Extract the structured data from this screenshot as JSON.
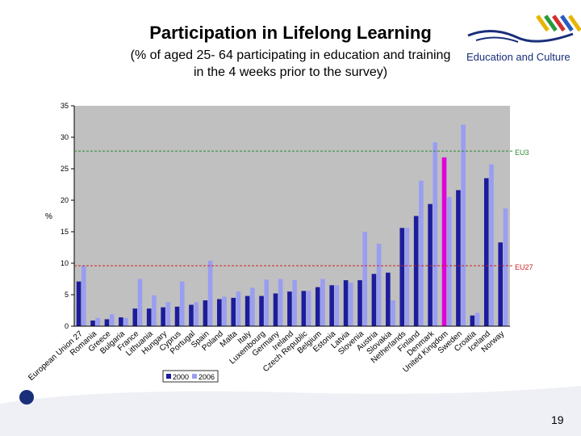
{
  "slide": {
    "title": "Participation in Lifelong Learning",
    "subtitle_line1": "(% of aged 25- 64 participating in education and training",
    "subtitle_line2": "in the 4 weeks prior to the survey)",
    "logo_text": "Education and Culture",
    "page_number": "19"
  },
  "colors": {
    "series_2000": "#1c1c9c",
    "series_2006": "#9a9ef0",
    "highlight_2000": "#e000d8",
    "plot_bg": "#c0c0c0",
    "eu3_line": "#2e8b2e",
    "eu27_line": "#cc2222",
    "logo_blue": "#1a2f7a"
  },
  "chart_data": {
    "type": "bar",
    "ylabel": "%",
    "ylim": [
      0,
      35
    ],
    "yticks": [
      0,
      5,
      10,
      15,
      20,
      25,
      30,
      35
    ],
    "categories": [
      "European Union 27",
      "Romania",
      "Greece",
      "Bulgaria",
      "France",
      "Lithuania",
      "Hungary",
      "Cyprus",
      "Portugal",
      "Spain",
      "Poland",
      "Malta",
      "Italy",
      "Luxembourg",
      "Germany",
      "Ireland",
      "Czech Republic",
      "Belgium",
      "Estonia",
      "Latvia",
      "Slovenia",
      "Austria",
      "Slovakia",
      "Netherlands",
      "Finland",
      "Denmark",
      "United Kingdom",
      "Sweden",
      "Croatia",
      "Iceland",
      "Norway"
    ],
    "series": [
      {
        "name": "2000",
        "values": [
          7.1,
          0.9,
          1.1,
          1.4,
          2.8,
          2.8,
          3.0,
          3.1,
          3.4,
          4.1,
          4.3,
          4.5,
          4.8,
          4.8,
          5.2,
          5.5,
          5.6,
          6.2,
          6.5,
          7.3,
          7.3,
          8.3,
          8.5,
          15.6,
          17.5,
          19.4,
          26.8,
          21.6,
          1.7,
          23.5,
          13.3
        ]
      },
      {
        "name": "2006",
        "values": [
          9.6,
          1.3,
          1.9,
          1.3,
          7.5,
          4.9,
          3.8,
          7.1,
          3.8,
          10.4,
          4.7,
          5.5,
          6.1,
          7.4,
          7.5,
          7.3,
          5.6,
          7.5,
          6.5,
          6.9,
          15.0,
          13.1,
          4.1,
          15.6,
          23.1,
          29.2,
          20.5,
          32.0,
          2.1,
          25.7,
          18.7
        ]
      }
    ],
    "highlight_index": 26,
    "reference_lines": [
      {
        "name": "EU3",
        "value": 27.8
      },
      {
        "name": "EU27",
        "value": 9.6
      }
    ],
    "legend": {
      "placement": "bottom-left",
      "labels": [
        "2000",
        "2006"
      ]
    },
    "grid": false
  }
}
